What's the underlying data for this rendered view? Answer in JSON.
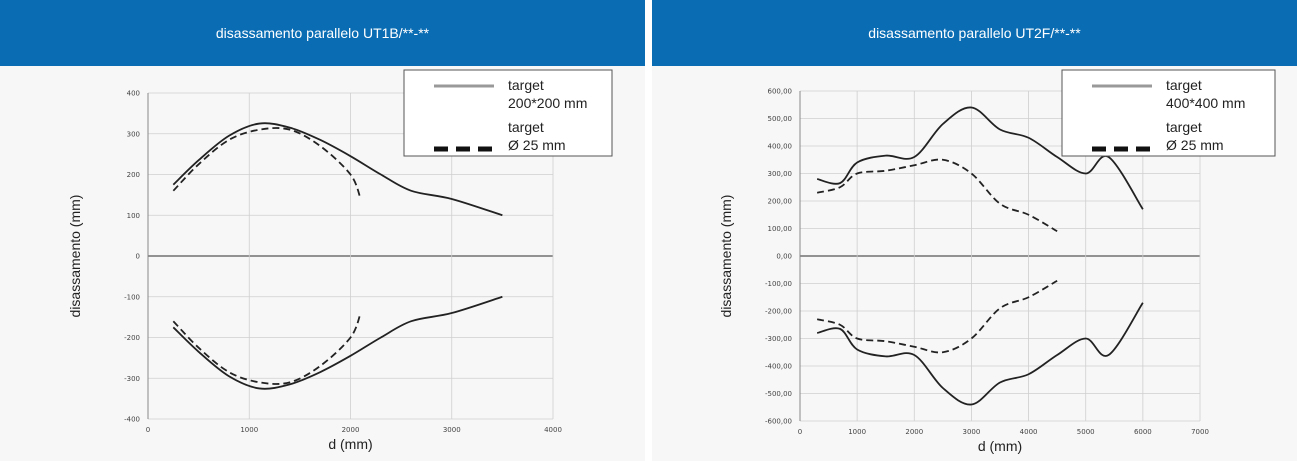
{
  "panels": [
    {
      "title": "disassamento parallelo UT1B/**-**",
      "chart_data": {
        "type": "line",
        "xlabel": "d (mm)",
        "ylabel": "disassamento (mm)",
        "xlim": [
          0,
          4000
        ],
        "ylim": [
          -400,
          400
        ],
        "xticks": [
          0,
          1000,
          2000,
          3000,
          4000
        ],
        "xtick_labels": [
          "0",
          "1000",
          "2000",
          "3000",
          "4000"
        ],
        "yticks": [
          400,
          300,
          200,
          100,
          0,
          -100,
          -200,
          -300,
          -400
        ],
        "ytick_labels": [
          "400",
          "300",
          "200",
          "100",
          "0",
          "-100",
          "-200",
          "-300",
          "-400"
        ],
        "grid": true,
        "legend": {
          "position": "top-right",
          "entries": [
            {
              "lines": [
                "target",
                "200*200 mm"
              ],
              "style": "solid"
            },
            {
              "lines": [
                "target",
                "Ø 25 mm"
              ],
              "style": "dashed"
            }
          ]
        },
        "series": [
          {
            "style": "solid",
            "x": [
              250,
              500,
              800,
              1100,
              1400,
              1700,
              2000,
              2300,
              2600,
              3000,
              3500
            ],
            "y": [
              175,
              235,
              295,
              325,
              315,
              285,
              245,
              200,
              160,
              140,
              100
            ]
          },
          {
            "style": "solid",
            "x": [
              250,
              500,
              800,
              1100,
              1400,
              1700,
              2000,
              2300,
              2600,
              3000,
              3500
            ],
            "y": [
              -175,
              -235,
              -295,
              -325,
              -315,
              -285,
              -245,
              -200,
              -160,
              -140,
              -100
            ]
          },
          {
            "style": "dashed",
            "x": [
              250,
              500,
              800,
              1100,
              1400,
              1700,
              2000,
              2100
            ],
            "y": [
              160,
              225,
              285,
              310,
              310,
              270,
              200,
              140
            ]
          },
          {
            "style": "dashed",
            "x": [
              250,
              500,
              800,
              1100,
              1400,
              1700,
              2000,
              2100
            ],
            "y": [
              -160,
              -225,
              -285,
              -310,
              -310,
              -270,
              -200,
              -140
            ]
          }
        ]
      }
    },
    {
      "title": "disassamento parallelo UT2F/**-**",
      "chart_data": {
        "type": "line",
        "xlabel": "d (mm)",
        "ylabel": "disassamento (mm)",
        "xlim": [
          0,
          7000
        ],
        "ylim": [
          -600,
          600
        ],
        "xticks": [
          0,
          1000,
          2000,
          3000,
          4000,
          5000,
          6000,
          7000
        ],
        "xtick_labels": [
          "0",
          "1000",
          "2000",
          "3000",
          "4000",
          "5000",
          "6000",
          "7000"
        ],
        "yticks": [
          600,
          500,
          400,
          300,
          200,
          100,
          0,
          -100,
          -200,
          -300,
          -400,
          -500,
          -600
        ],
        "ytick_labels": [
          "600,00",
          "500,00",
          "400,00",
          "300,00",
          "200,00",
          "100,00",
          "0,00",
          "-100,00",
          "-200,00",
          "-300,00",
          "-400,00",
          "-500,00",
          "-600,00"
        ],
        "grid": true,
        "legend": {
          "position": "top-right",
          "entries": [
            {
              "lines": [
                "target",
                "400*400 mm"
              ],
              "style": "solid"
            },
            {
              "lines": [
                "target",
                "Ø 25 mm"
              ],
              "style": "dashed"
            }
          ]
        },
        "series": [
          {
            "style": "solid",
            "x": [
              300,
              700,
              1000,
              1500,
              2000,
              2500,
              3000,
              3500,
              4000,
              4500,
              5000,
              5400,
              6000
            ],
            "y": [
              280,
              265,
              340,
              365,
              360,
              480,
              540,
              460,
              430,
              360,
              300,
              360,
              170
            ]
          },
          {
            "style": "solid",
            "x": [
              300,
              700,
              1000,
              1500,
              2000,
              2500,
              3000,
              3500,
              4000,
              4500,
              5000,
              5400,
              6000
            ],
            "y": [
              -280,
              -265,
              -340,
              -365,
              -360,
              -480,
              -540,
              -460,
              -430,
              -360,
              -300,
              -360,
              -170
            ]
          },
          {
            "style": "dashed",
            "x": [
              300,
              700,
              1000,
              1500,
              2000,
              2500,
              3000,
              3500,
              4000,
              4500
            ],
            "y": [
              230,
              250,
              300,
              310,
              330,
              350,
              300,
              190,
              150,
              90
            ]
          },
          {
            "style": "dashed",
            "x": [
              300,
              700,
              1000,
              1500,
              2000,
              2500,
              3000,
              3500,
              4000,
              4500
            ],
            "y": [
              -230,
              -250,
              -300,
              -310,
              -330,
              -350,
              -300,
              -190,
              -150,
              -90
            ]
          }
        ]
      }
    }
  ]
}
